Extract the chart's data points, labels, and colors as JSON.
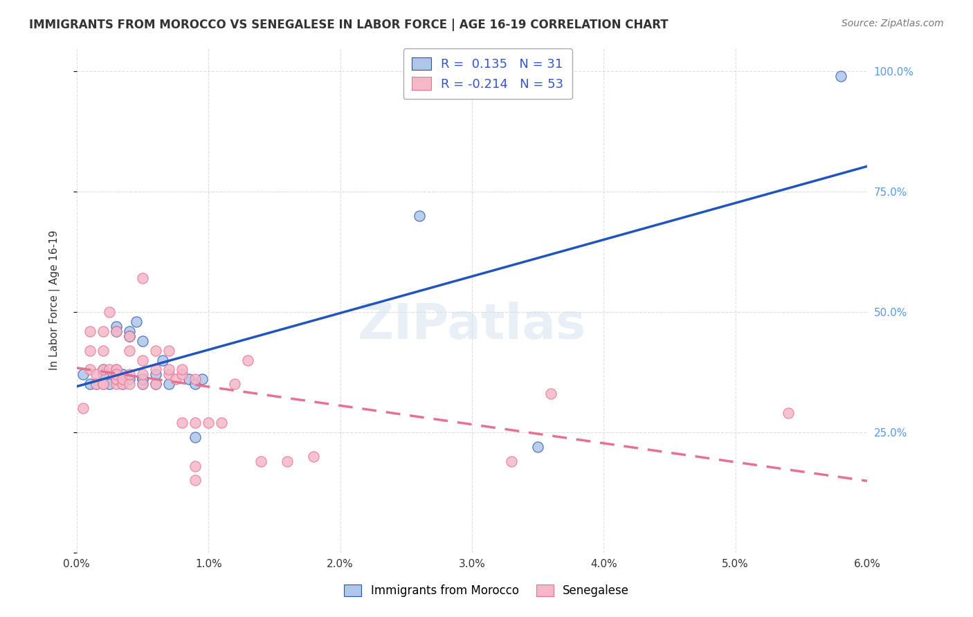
{
  "title": "IMMIGRANTS FROM MOROCCO VS SENEGALESE IN LABOR FORCE | AGE 16-19 CORRELATION CHART",
  "source": "Source: ZipAtlas.com",
  "xlabel": "",
  "ylabel": "In Labor Force | Age 16-19",
  "xlim": [
    0.0,
    0.06
  ],
  "ylim": [
    0.0,
    1.05
  ],
  "xticks": [
    0.0,
    0.01,
    0.02,
    0.03,
    0.04,
    0.05,
    0.06
  ],
  "xticklabels": [
    "0.0%",
    "1.0%",
    "2.0%",
    "3.0%",
    "4.0%",
    "5.0%",
    "6.0%"
  ],
  "yticks_left": [
    0.0,
    0.25,
    0.5,
    0.75,
    1.0
  ],
  "yticklabels_left": [
    "",
    "",
    "",
    "",
    ""
  ],
  "yticks_right": [
    0.25,
    0.5,
    0.75,
    1.0
  ],
  "yticklabels_right": [
    "25.0%",
    "50.0%",
    "75.0%",
    "100.0%"
  ],
  "morocco_color": "#aec6e8",
  "senegalese_color": "#f4b8c8",
  "morocco_line_color": "#2255bb",
  "senegalese_line_color": "#e87090",
  "legend_r_morocco": "0.135",
  "legend_n_morocco": "31",
  "legend_r_senegalese": "-0.214",
  "legend_n_senegalese": "53",
  "watermark": "ZIPatlas",
  "background_color": "#ffffff",
  "grid_color": "#dddddd",
  "morocco_scatter_x": [
    0.0005,
    0.001,
    0.0015,
    0.002,
    0.002,
    0.0025,
    0.003,
    0.003,
    0.003,
    0.0035,
    0.0035,
    0.004,
    0.004,
    0.004,
    0.004,
    0.0045,
    0.005,
    0.005,
    0.005,
    0.005,
    0.006,
    0.006,
    0.0065,
    0.007,
    0.0085,
    0.009,
    0.009,
    0.0095,
    0.026,
    0.035,
    0.058
  ],
  "morocco_scatter_y": [
    0.37,
    0.35,
    0.35,
    0.38,
    0.37,
    0.35,
    0.36,
    0.47,
    0.46,
    0.35,
    0.37,
    0.36,
    0.46,
    0.45,
    0.45,
    0.48,
    0.35,
    0.36,
    0.36,
    0.44,
    0.35,
    0.37,
    0.4,
    0.35,
    0.36,
    0.35,
    0.24,
    0.36,
    0.7,
    0.22,
    0.99
  ],
  "senegalese_scatter_x": [
    0.0005,
    0.001,
    0.001,
    0.001,
    0.0015,
    0.0015,
    0.002,
    0.002,
    0.002,
    0.002,
    0.002,
    0.0025,
    0.0025,
    0.003,
    0.003,
    0.003,
    0.003,
    0.003,
    0.003,
    0.0035,
    0.0035,
    0.004,
    0.004,
    0.004,
    0.004,
    0.005,
    0.005,
    0.005,
    0.005,
    0.006,
    0.006,
    0.006,
    0.007,
    0.007,
    0.007,
    0.0075,
    0.008,
    0.008,
    0.008,
    0.009,
    0.009,
    0.009,
    0.009,
    0.01,
    0.011,
    0.012,
    0.013,
    0.014,
    0.016,
    0.018,
    0.033,
    0.036,
    0.054
  ],
  "senegalese_scatter_y": [
    0.3,
    0.38,
    0.42,
    0.46,
    0.37,
    0.35,
    0.35,
    0.35,
    0.38,
    0.42,
    0.46,
    0.38,
    0.5,
    0.35,
    0.36,
    0.38,
    0.46,
    0.38,
    0.37,
    0.35,
    0.36,
    0.35,
    0.37,
    0.42,
    0.45,
    0.35,
    0.37,
    0.4,
    0.57,
    0.35,
    0.38,
    0.42,
    0.37,
    0.38,
    0.42,
    0.36,
    0.37,
    0.38,
    0.27,
    0.27,
    0.36,
    0.15,
    0.18,
    0.27,
    0.27,
    0.35,
    0.4,
    0.19,
    0.19,
    0.2,
    0.19,
    0.33,
    0.29
  ]
}
